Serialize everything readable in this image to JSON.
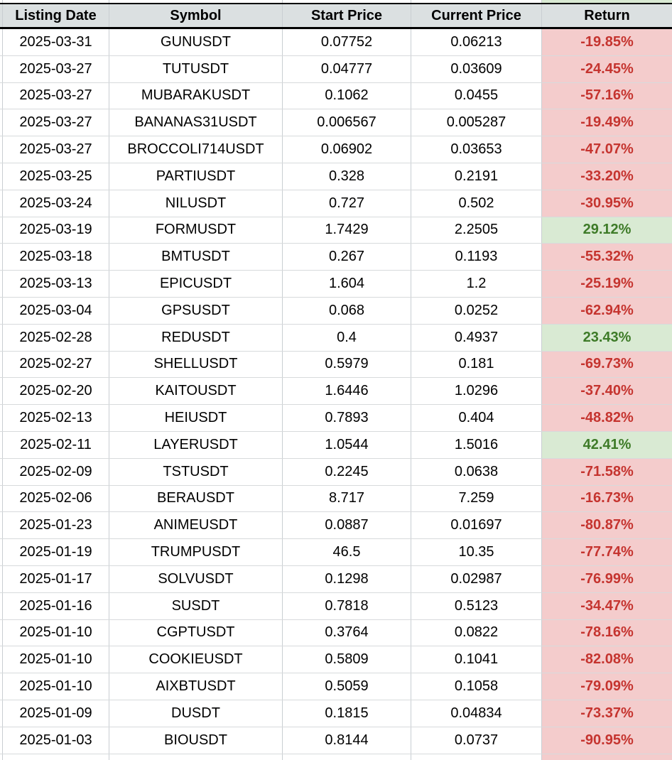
{
  "colors": {
    "header_bg": "#dbe0e1",
    "header_border": "#000000",
    "grid_line": "#c9ced2",
    "negative_bg": "#f4cccc",
    "negative_text": "#c5342f",
    "positive_bg": "#d9ead3",
    "positive_text": "#3e7b28"
  },
  "chart_data": {
    "type": "table",
    "columns": [
      "Listing Date",
      "Symbol",
      "Start Price",
      "Current Price",
      "Return"
    ],
    "rows": [
      {
        "listing_date": "2025-03-31",
        "symbol": "GUNUSDT",
        "start_price": "0.07752",
        "current_price": "0.06213",
        "return": "-19.85%",
        "direction": "negative"
      },
      {
        "listing_date": "2025-03-27",
        "symbol": "TUTUSDT",
        "start_price": "0.04777",
        "current_price": "0.03609",
        "return": "-24.45%",
        "direction": "negative"
      },
      {
        "listing_date": "2025-03-27",
        "symbol": "MUBARAKUSDT",
        "start_price": "0.1062",
        "current_price": "0.0455",
        "return": "-57.16%",
        "direction": "negative"
      },
      {
        "listing_date": "2025-03-27",
        "symbol": "BANANAS31USDT",
        "start_price": "0.006567",
        "current_price": "0.005287",
        "return": "-19.49%",
        "direction": "negative"
      },
      {
        "listing_date": "2025-03-27",
        "symbol": "BROCCOLI714USDT",
        "start_price": "0.06902",
        "current_price": "0.03653",
        "return": "-47.07%",
        "direction": "negative"
      },
      {
        "listing_date": "2025-03-25",
        "symbol": "PARTIUSDT",
        "start_price": "0.328",
        "current_price": "0.2191",
        "return": "-33.20%",
        "direction": "negative"
      },
      {
        "listing_date": "2025-03-24",
        "symbol": "NILUSDT",
        "start_price": "0.727",
        "current_price": "0.502",
        "return": "-30.95%",
        "direction": "negative"
      },
      {
        "listing_date": "2025-03-19",
        "symbol": "FORMUSDT",
        "start_price": "1.7429",
        "current_price": "2.2505",
        "return": "29.12%",
        "direction": "positive"
      },
      {
        "listing_date": "2025-03-18",
        "symbol": "BMTUSDT",
        "start_price": "0.267",
        "current_price": "0.1193",
        "return": "-55.32%",
        "direction": "negative"
      },
      {
        "listing_date": "2025-03-13",
        "symbol": "EPICUSDT",
        "start_price": "1.604",
        "current_price": "1.2",
        "return": "-25.19%",
        "direction": "negative"
      },
      {
        "listing_date": "2025-03-04",
        "symbol": "GPSUSDT",
        "start_price": "0.068",
        "current_price": "0.0252",
        "return": "-62.94%",
        "direction": "negative"
      },
      {
        "listing_date": "2025-02-28",
        "symbol": "REDUSDT",
        "start_price": "0.4",
        "current_price": "0.4937",
        "return": "23.43%",
        "direction": "positive"
      },
      {
        "listing_date": "2025-02-27",
        "symbol": "SHELLUSDT",
        "start_price": "0.5979",
        "current_price": "0.181",
        "return": "-69.73%",
        "direction": "negative"
      },
      {
        "listing_date": "2025-02-20",
        "symbol": "KAITOUSDT",
        "start_price": "1.6446",
        "current_price": "1.0296",
        "return": "-37.40%",
        "direction": "negative"
      },
      {
        "listing_date": "2025-02-13",
        "symbol": "HEIUSDT",
        "start_price": "0.7893",
        "current_price": "0.404",
        "return": "-48.82%",
        "direction": "negative"
      },
      {
        "listing_date": "2025-02-11",
        "symbol": "LAYERUSDT",
        "start_price": "1.0544",
        "current_price": "1.5016",
        "return": "42.41%",
        "direction": "positive"
      },
      {
        "listing_date": "2025-02-09",
        "symbol": "TSTUSDT",
        "start_price": "0.2245",
        "current_price": "0.0638",
        "return": "-71.58%",
        "direction": "negative"
      },
      {
        "listing_date": "2025-02-06",
        "symbol": "BERAUSDT",
        "start_price": "8.717",
        "current_price": "7.259",
        "return": "-16.73%",
        "direction": "negative"
      },
      {
        "listing_date": "2025-01-23",
        "symbol": "ANIMEUSDT",
        "start_price": "0.0887",
        "current_price": "0.01697",
        "return": "-80.87%",
        "direction": "negative"
      },
      {
        "listing_date": "2025-01-19",
        "symbol": "TRUMPUSDT",
        "start_price": "46.5",
        "current_price": "10.35",
        "return": "-77.74%",
        "direction": "negative"
      },
      {
        "listing_date": "2025-01-17",
        "symbol": "SOLVUSDT",
        "start_price": "0.1298",
        "current_price": "0.02987",
        "return": "-76.99%",
        "direction": "negative"
      },
      {
        "listing_date": "2025-01-16",
        "symbol": "SUSDT",
        "start_price": "0.7818",
        "current_price": "0.5123",
        "return": "-34.47%",
        "direction": "negative"
      },
      {
        "listing_date": "2025-01-10",
        "symbol": "CGPTUSDT",
        "start_price": "0.3764",
        "current_price": "0.0822",
        "return": "-78.16%",
        "direction": "negative"
      },
      {
        "listing_date": "2025-01-10",
        "symbol": "COOKIEUSDT",
        "start_price": "0.5809",
        "current_price": "0.1041",
        "return": "-82.08%",
        "direction": "negative"
      },
      {
        "listing_date": "2025-01-10",
        "symbol": "AIXBTUSDT",
        "start_price": "0.5059",
        "current_price": "0.1058",
        "return": "-79.09%",
        "direction": "negative"
      },
      {
        "listing_date": "2025-01-09",
        "symbol": "DUSDT",
        "start_price": "0.1815",
        "current_price": "0.04834",
        "return": "-73.37%",
        "direction": "negative"
      },
      {
        "listing_date": "2025-01-03",
        "symbol": "BIOUSDT",
        "start_price": "0.8144",
        "current_price": "0.0737",
        "return": "-90.95%",
        "direction": "negative"
      }
    ]
  }
}
